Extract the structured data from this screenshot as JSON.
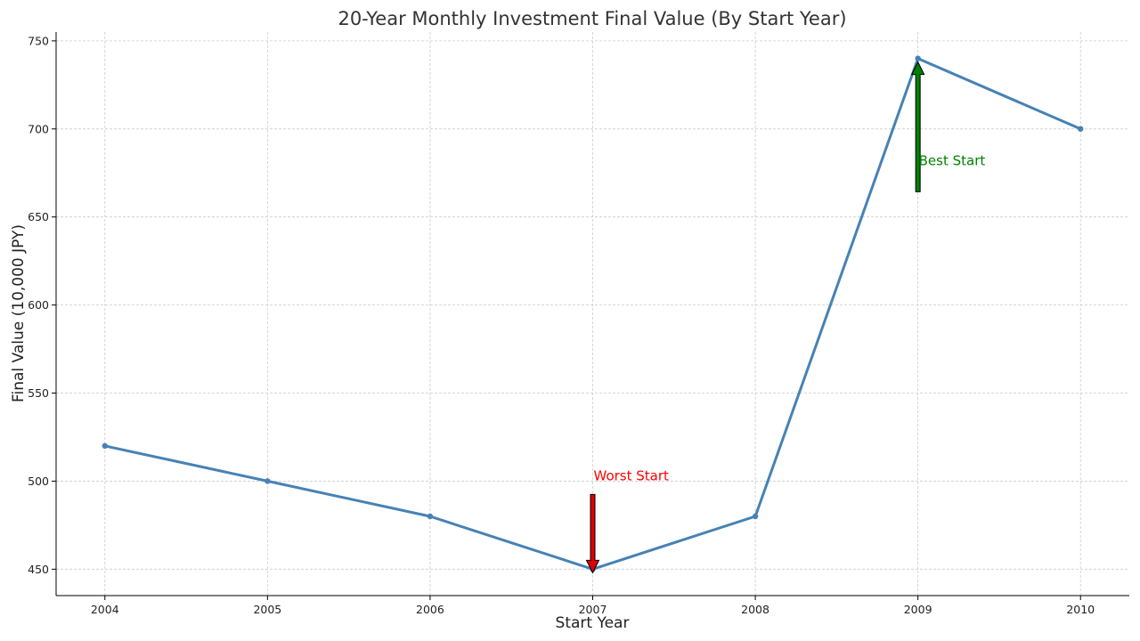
{
  "chart_data": {
    "type": "line",
    "title": "20-Year Monthly Investment Final Value (By Start Year)",
    "xlabel": "Start Year",
    "ylabel": "Final Value (10,000 JPY)",
    "x": [
      2004,
      2005,
      2006,
      2007,
      2008,
      2009,
      2010
    ],
    "x_tick_labels": [
      "2004",
      "2005",
      "2006",
      "2007",
      "2008",
      "2009",
      "2010"
    ],
    "xlim": [
      2003.7,
      2010.3
    ],
    "ylim": [
      435,
      755
    ],
    "y_ticks": [
      450,
      500,
      550,
      600,
      650,
      700,
      750
    ],
    "y_tick_labels": [
      "450",
      "500",
      "550",
      "600",
      "650",
      "700",
      "750"
    ],
    "grid": true,
    "series": [
      {
        "values": [
          520,
          500,
          480,
          450,
          480,
          740,
          700
        ],
        "color": "#4682b4"
      }
    ],
    "annotations": [
      {
        "text": "Worst Start",
        "x": 2007,
        "y": 450,
        "text_x": 2007,
        "text_y": 500,
        "direction": "down",
        "color": "#ff0000",
        "arrow_color": "#dd0000"
      },
      {
        "text": "Best Start",
        "x": 2009,
        "y": 740,
        "text_x": 2009,
        "text_y": 680,
        "direction": "up",
        "color": "#008000",
        "arrow_color": "#008000"
      }
    ]
  }
}
